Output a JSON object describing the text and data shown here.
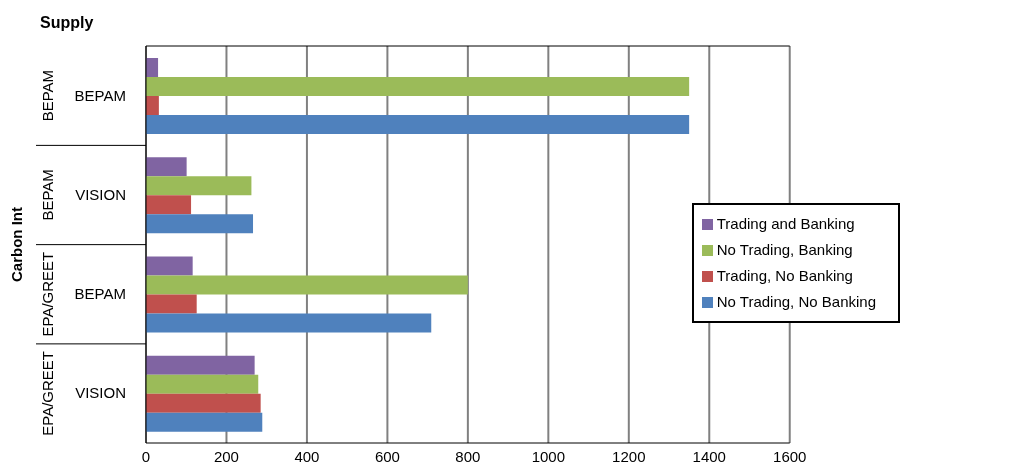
{
  "chart_data": {
    "type": "bar",
    "orientation": "horizontal",
    "title": "Supply",
    "ylabel": "Carbon Int",
    "categories": [
      "BEPAM",
      "VISION",
      "BEPAM",
      "VISION"
    ],
    "annotations": [
      "BEPAM",
      "BEPAM",
      "EPA/GREET",
      "EPA/GREET"
    ],
    "series": [
      {
        "name": "Trading and Banking",
        "color": "#8064a2",
        "values": [
          30,
          101,
          116,
          270
        ]
      },
      {
        "name": "No Trading, Banking",
        "color": "#9bbb59",
        "values": [
          1350,
          262,
          800,
          279
        ]
      },
      {
        "name": "Trading, No Banking",
        "color": "#c0504d",
        "values": [
          32,
          112,
          126,
          285
        ]
      },
      {
        "name": "No Trading, No Banking",
        "color": "#4f81bd",
        "values": [
          1350,
          266,
          709,
          289
        ]
      }
    ],
    "xlim": [
      0,
      1600
    ],
    "xticks": [
      0,
      200,
      400,
      600,
      800,
      1000,
      1200,
      1400,
      1600
    ],
    "grid": "x",
    "legend": "right"
  }
}
